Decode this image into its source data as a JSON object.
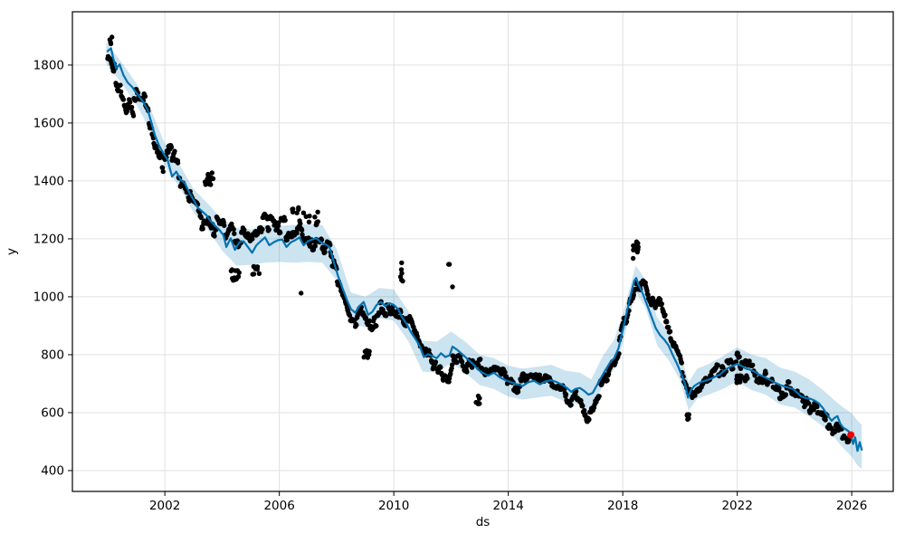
{
  "figure": {
    "background": "#ffffff"
  },
  "chart_data": {
    "type": "scatter",
    "description": "Prophet-style time series forecast: black observation dots, blue forecast line (yhat) with light-blue uncertainty band, red highlighted final point",
    "title": "",
    "xlabel": "ds",
    "ylabel": "y",
    "xlim": [
      1998.77,
      2027.45
    ],
    "ylim": [
      328,
      1984
    ],
    "xticks": [
      2002,
      2006,
      2010,
      2014,
      2018,
      2022,
      2026
    ],
    "yticks": [
      400,
      600,
      800,
      1000,
      1200,
      1400,
      1600,
      1800
    ],
    "grid": true,
    "legend": "none",
    "colors": {
      "line": "#0072b2",
      "band": "#0072b2",
      "band_opacity": 0.2,
      "dots": "#000000",
      "highlight": "#ee0000",
      "grid": "#e0e0e0",
      "spine": "#000000"
    },
    "trend": [
      [
        2000.0,
        1848
      ],
      [
        2000.12,
        1858
      ],
      [
        2000.2,
        1822
      ],
      [
        2000.3,
        1788
      ],
      [
        2000.42,
        1802
      ],
      [
        2000.55,
        1766
      ],
      [
        2000.7,
        1740
      ],
      [
        2000.85,
        1725
      ],
      [
        2001.0,
        1705
      ],
      [
        2001.1,
        1692
      ],
      [
        2001.25,
        1672
      ],
      [
        2001.4,
        1645
      ],
      [
        2001.5,
        1612
      ],
      [
        2001.65,
        1558
      ],
      [
        2001.8,
        1522
      ],
      [
        2001.95,
        1495
      ],
      [
        2002.1,
        1472
      ],
      [
        2002.25,
        1415
      ],
      [
        2002.4,
        1432
      ],
      [
        2002.55,
        1405
      ],
      [
        2002.7,
        1392
      ],
      [
        2002.85,
        1360
      ],
      [
        2003.0,
        1335
      ],
      [
        2003.15,
        1308
      ],
      [
        2003.3,
        1295
      ],
      [
        2003.45,
        1282
      ],
      [
        2003.6,
        1262
      ],
      [
        2003.75,
        1245
      ],
      [
        2003.9,
        1232
      ],
      [
        2004.05,
        1212
      ],
      [
        2004.15,
        1172
      ],
      [
        2004.3,
        1202
      ],
      [
        2004.45,
        1162
      ],
      [
        2004.6,
        1188
      ],
      [
        2004.75,
        1192
      ],
      [
        2004.9,
        1172
      ],
      [
        2005.05,
        1152
      ],
      [
        2005.2,
        1178
      ],
      [
        2005.35,
        1192
      ],
      [
        2005.5,
        1205
      ],
      [
        2005.65,
        1178
      ],
      [
        2005.8,
        1188
      ],
      [
        2005.95,
        1195
      ],
      [
        2006.1,
        1198
      ],
      [
        2006.25,
        1172
      ],
      [
        2006.4,
        1188
      ],
      [
        2006.55,
        1195
      ],
      [
        2006.7,
        1205
      ],
      [
        2006.85,
        1178
      ],
      [
        2007.0,
        1192
      ],
      [
        2007.15,
        1198
      ],
      [
        2007.3,
        1202
      ],
      [
        2007.45,
        1188
      ],
      [
        2007.6,
        1182
      ],
      [
        2007.75,
        1172
      ],
      [
        2007.9,
        1122
      ],
      [
        2008.05,
        1072
      ],
      [
        2008.2,
        1032
      ],
      [
        2008.35,
        992
      ],
      [
        2008.5,
        958
      ],
      [
        2008.65,
        945
      ],
      [
        2008.8,
        968
      ],
      [
        2008.95,
        982
      ],
      [
        2009.1,
        938
      ],
      [
        2009.25,
        948
      ],
      [
        2009.4,
        972
      ],
      [
        2009.55,
        982
      ],
      [
        2009.7,
        968
      ],
      [
        2009.85,
        978
      ],
      [
        2010.0,
        972
      ],
      [
        2010.15,
        958
      ],
      [
        2010.3,
        928
      ],
      [
        2010.45,
        905
      ],
      [
        2010.6,
        878
      ],
      [
        2010.75,
        855
      ],
      [
        2010.9,
        832
      ],
      [
        2011.05,
        792
      ],
      [
        2011.2,
        802
      ],
      [
        2011.35,
        795
      ],
      [
        2011.5,
        788
      ],
      [
        2011.65,
        805
      ],
      [
        2011.8,
        792
      ],
      [
        2011.95,
        798
      ],
      [
        2012.05,
        828
      ],
      [
        2012.2,
        818
      ],
      [
        2012.35,
        805
      ],
      [
        2012.5,
        792
      ],
      [
        2012.65,
        778
      ],
      [
        2012.8,
        765
      ],
      [
        2012.95,
        748
      ],
      [
        2013.1,
        738
      ],
      [
        2013.3,
        728
      ],
      [
        2013.5,
        738
      ],
      [
        2013.7,
        722
      ],
      [
        2013.9,
        712
      ],
      [
        2014.1,
        705
      ],
      [
        2014.3,
        698
      ],
      [
        2014.5,
        692
      ],
      [
        2014.7,
        705
      ],
      [
        2014.9,
        710
      ],
      [
        2015.1,
        698
      ],
      [
        2015.3,
        708
      ],
      [
        2015.5,
        712
      ],
      [
        2015.7,
        705
      ],
      [
        2015.9,
        695
      ],
      [
        2016.05,
        685
      ],
      [
        2016.2,
        672
      ],
      [
        2016.35,
        682
      ],
      [
        2016.5,
        685
      ],
      [
        2016.65,
        675
      ],
      [
        2016.8,
        662
      ],
      [
        2016.95,
        668
      ],
      [
        2017.1,
        695
      ],
      [
        2017.25,
        722
      ],
      [
        2017.4,
        748
      ],
      [
        2017.55,
        772
      ],
      [
        2017.7,
        788
      ],
      [
        2017.85,
        822
      ],
      [
        2018.0,
        885
      ],
      [
        2018.1,
        928
      ],
      [
        2018.2,
        972
      ],
      [
        2018.3,
        1015
      ],
      [
        2018.4,
        1055
      ],
      [
        2018.47,
        1065
      ],
      [
        2018.55,
        1042
      ],
      [
        2018.65,
        1022
      ],
      [
        2018.75,
        998
      ],
      [
        2018.85,
        972
      ],
      [
        2019.0,
        932
      ],
      [
        2019.15,
        892
      ],
      [
        2019.3,
        868
      ],
      [
        2019.45,
        852
      ],
      [
        2019.6,
        832
      ],
      [
        2019.75,
        798
      ],
      [
        2019.9,
        768
      ],
      [
        2020.05,
        732
      ],
      [
        2020.18,
        698
      ],
      [
        2020.28,
        652
      ],
      [
        2020.38,
        678
      ],
      [
        2020.5,
        692
      ],
      [
        2020.65,
        702
      ],
      [
        2020.8,
        708
      ],
      [
        2020.95,
        712
      ],
      [
        2021.1,
        718
      ],
      [
        2021.25,
        725
      ],
      [
        2021.4,
        732
      ],
      [
        2021.55,
        745
      ],
      [
        2021.7,
        755
      ],
      [
        2021.85,
        762
      ],
      [
        2022.0,
        768
      ],
      [
        2022.15,
        762
      ],
      [
        2022.3,
        752
      ],
      [
        2022.45,
        748
      ],
      [
        2022.6,
        742
      ],
      [
        2022.75,
        732
      ],
      [
        2022.9,
        725
      ],
      [
        2023.05,
        718
      ],
      [
        2023.2,
        710
      ],
      [
        2023.35,
        702
      ],
      [
        2023.5,
        695
      ],
      [
        2023.65,
        690
      ],
      [
        2023.8,
        686
      ],
      [
        2023.95,
        682
      ],
      [
        2024.1,
        668
      ],
      [
        2024.25,
        655
      ],
      [
        2024.4,
        650
      ],
      [
        2024.55,
        648
      ],
      [
        2024.7,
        642
      ],
      [
        2024.85,
        632
      ],
      [
        2025.0,
        615
      ],
      [
        2025.1,
        598
      ],
      [
        2025.2,
        585
      ],
      [
        2025.3,
        572
      ],
      [
        2025.4,
        582
      ],
      [
        2025.5,
        588
      ],
      [
        2025.6,
        562
      ],
      [
        2025.7,
        548
      ],
      [
        2025.8,
        542
      ],
      [
        2025.9,
        535
      ],
      [
        2025.97,
        523
      ],
      [
        2026.05,
        492
      ],
      [
        2026.12,
        515
      ],
      [
        2026.2,
        468
      ],
      [
        2026.28,
        498
      ],
      [
        2026.35,
        472
      ]
    ],
    "band": [
      [
        1999.95,
        1805,
        1880
      ],
      [
        2000.5,
        1735,
        1808
      ],
      [
        2001.0,
        1665,
        1738
      ],
      [
        2001.5,
        1575,
        1650
      ],
      [
        2002.0,
        1452,
        1528
      ],
      [
        2002.5,
        1380,
        1458
      ],
      [
        2003.0,
        1292,
        1372
      ],
      [
        2003.5,
        1232,
        1322
      ],
      [
        2004.0,
        1160,
        1268
      ],
      [
        2004.5,
        1108,
        1238
      ],
      [
        2005.0,
        1110,
        1232
      ],
      [
        2005.5,
        1118,
        1248
      ],
      [
        2006.0,
        1120,
        1245
      ],
      [
        2006.5,
        1118,
        1248
      ],
      [
        2007.0,
        1120,
        1250
      ],
      [
        2007.5,
        1118,
        1248
      ],
      [
        2008.0,
        1058,
        1165
      ],
      [
        2008.5,
        905,
        1015
      ],
      [
        2009.0,
        895,
        1000
      ],
      [
        2009.5,
        925,
        1030
      ],
      [
        2010.0,
        918,
        1025
      ],
      [
        2010.5,
        848,
        952
      ],
      [
        2011.0,
        742,
        848
      ],
      [
        2011.5,
        738,
        845
      ],
      [
        2012.0,
        772,
        880
      ],
      [
        2012.5,
        738,
        845
      ],
      [
        2013.0,
        695,
        800
      ],
      [
        2013.5,
        682,
        788
      ],
      [
        2014.0,
        655,
        762
      ],
      [
        2014.5,
        645,
        752
      ],
      [
        2015.0,
        652,
        758
      ],
      [
        2015.5,
        658,
        765
      ],
      [
        2016.0,
        638,
        745
      ],
      [
        2016.5,
        628,
        738
      ],
      [
        2016.9,
        605,
        715
      ],
      [
        2017.3,
        692,
        795
      ],
      [
        2017.7,
        752,
        852
      ],
      [
        2018.0,
        838,
        938
      ],
      [
        2018.45,
        1018,
        1108
      ],
      [
        2018.8,
        962,
        1058
      ],
      [
        2019.2,
        832,
        928
      ],
      [
        2019.6,
        782,
        878
      ],
      [
        2020.0,
        712,
        808
      ],
      [
        2020.3,
        608,
        705
      ],
      [
        2020.6,
        648,
        752
      ],
      [
        2021.0,
        662,
        768
      ],
      [
        2021.5,
        682,
        795
      ],
      [
        2022.0,
        708,
        825
      ],
      [
        2022.5,
        678,
        800
      ],
      [
        2023.0,
        662,
        788
      ],
      [
        2023.5,
        628,
        755
      ],
      [
        2024.0,
        618,
        742
      ],
      [
        2024.5,
        588,
        715
      ],
      [
        2025.0,
        552,
        678
      ],
      [
        2025.4,
        512,
        642
      ],
      [
        2025.7,
        478,
        618
      ],
      [
        2026.0,
        448,
        598
      ],
      [
        2026.2,
        418,
        572
      ],
      [
        2026.35,
        405,
        558
      ]
    ],
    "scatter_model": {
      "start": 2000.0,
      "end": 2025.92,
      "per_year": 52,
      "run_length": 3,
      "phi": 0.9,
      "sigma": 15,
      "early_factor": 1.35,
      "early_until": 2004,
      "jitter": 3,
      "seed": 11,
      "radius": 2.7
    },
    "outlier_clusters": [
      {
        "year": 2000.12,
        "span": 0.1,
        "value": 1885,
        "spread": 12,
        "n": 4
      },
      {
        "year": 2003.55,
        "span": 0.3,
        "value": 1408,
        "spread": 22,
        "n": 14
      },
      {
        "year": 2004.45,
        "span": 0.35,
        "value": 1075,
        "spread": 20,
        "n": 12
      },
      {
        "year": 2005.15,
        "span": 0.3,
        "value": 1095,
        "spread": 20,
        "n": 8
      },
      {
        "year": 2006.75,
        "span": 0.03,
        "value": 1010,
        "spread": 4,
        "n": 1
      },
      {
        "year": 2006.9,
        "span": 0.9,
        "value": 1280,
        "spread": 35,
        "n": 18
      },
      {
        "year": 2009.05,
        "span": 0.2,
        "value": 800,
        "spread": 18,
        "n": 8
      },
      {
        "year": 2010.28,
        "span": 0.12,
        "value": 1080,
        "spread": 40,
        "n": 6
      },
      {
        "year": 2011.93,
        "span": 0.05,
        "value": 1118,
        "spread": 8,
        "n": 2
      },
      {
        "year": 2012.05,
        "span": 0.02,
        "value": 1035,
        "spread": 4,
        "n": 1
      },
      {
        "year": 2012.95,
        "span": 0.15,
        "value": 645,
        "spread": 15,
        "n": 7
      },
      {
        "year": 2018.45,
        "span": 0.18,
        "value": 1160,
        "spread": 30,
        "n": 12
      },
      {
        "year": 2020.28,
        "span": 0.07,
        "value": 582,
        "spread": 16,
        "n": 8
      },
      {
        "year": 2022.15,
        "span": 0.45,
        "value": 716,
        "spread": 14,
        "n": 16
      }
    ],
    "highlight_point": {
      "x": 2025.97,
      "y": 523,
      "radius": 4
    }
  }
}
